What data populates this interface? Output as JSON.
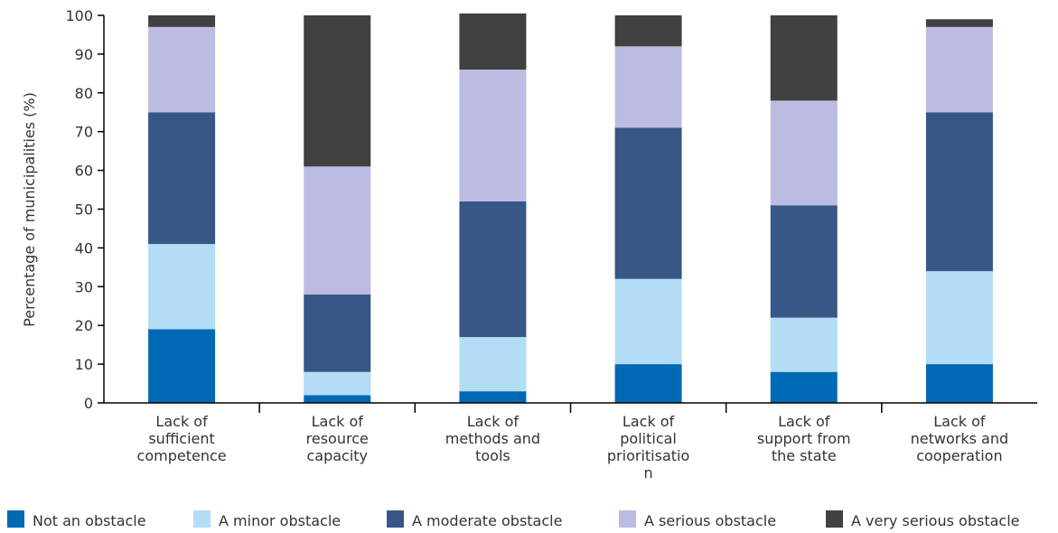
{
  "chart_data": {
    "type": "bar",
    "stacked": true,
    "ylabel": "Percentage of municipalities (%)",
    "xlabel": "",
    "ylim": [
      0,
      100
    ],
    "yticks": [
      0,
      10,
      20,
      30,
      40,
      50,
      60,
      70,
      80,
      90,
      100
    ],
    "grid": false,
    "legend_position": "bottom",
    "categories": [
      [
        "Lack of",
        "sufficient",
        "competence"
      ],
      [
        "Lack of",
        "resource",
        "capacity"
      ],
      [
        "Lack of",
        "methods and",
        "tools"
      ],
      [
        "Lack of",
        "political",
        "prioritisatio",
        "n"
      ],
      [
        "Lack of",
        "support from",
        "the state"
      ],
      [
        "Lack of",
        "networks and",
        "cooperation"
      ]
    ],
    "series": [
      {
        "name": "Not an obstacle",
        "color": "#0069b4",
        "values": [
          19,
          2,
          3,
          10,
          8,
          10
        ]
      },
      {
        "name": "A minor obstacle",
        "color": "#b3dcf5",
        "values": [
          22,
          6,
          14,
          22,
          14,
          24
        ]
      },
      {
        "name": "A moderate obstacle",
        "color": "#375786",
        "values": [
          34,
          20,
          35,
          39,
          29,
          41
        ]
      },
      {
        "name": "A serious obstacle",
        "color": "#bcbce2",
        "values": [
          22,
          33,
          34,
          21,
          27,
          22
        ]
      },
      {
        "name": "A very serious obstacle",
        "color": "#414141",
        "values": [
          3,
          39,
          14.5,
          8,
          22,
          2
        ]
      }
    ]
  }
}
